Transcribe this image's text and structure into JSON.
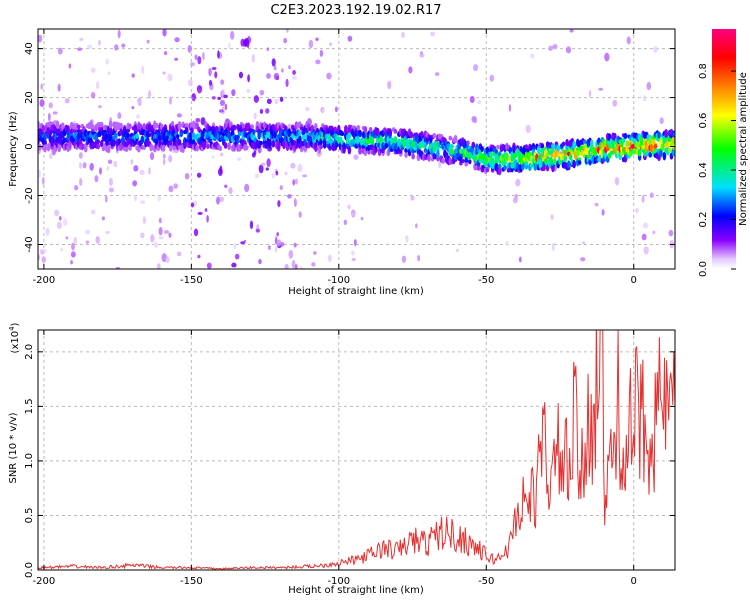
{
  "title": "C2E3.2023.192.19.02.R17",
  "colorbar": {
    "label": "Normalized spectral amplitude",
    "ticks": [
      "0.0",
      "0.2",
      "0.4",
      "0.6",
      "0.8"
    ],
    "tick_values": [
      0.0,
      0.2,
      0.4,
      0.6,
      0.8
    ],
    "range": [
      0,
      0.97
    ]
  },
  "chart_data": [
    {
      "type": "heatmap",
      "xlabel": "Height of straight line (km)",
      "ylabel": "Frequency (Hz)",
      "xlim": [
        -202,
        14
      ],
      "ylim": [
        -50,
        48
      ],
      "xticks": [
        -200,
        -150,
        -100,
        -50,
        0
      ],
      "xtick_labels": [
        "-200",
        "-150",
        "-100",
        "-50",
        "0"
      ],
      "yticks": [
        -40,
        -20,
        0,
        20,
        40
      ],
      "ytick_labels": [
        "-40",
        "-20",
        "0",
        "20",
        "40"
      ],
      "ridge": {
        "x": [
          -200,
          -150,
          -110,
          -100,
          -80,
          -65,
          -55,
          -50,
          -45,
          -40,
          -35,
          -30,
          -20,
          -10,
          0,
          14
        ],
        "freq": [
          4,
          4,
          4,
          3,
          2,
          -1,
          -3,
          -5,
          -5,
          -5,
          -5,
          -4,
          -3,
          -1,
          0,
          1
        ],
        "amplitude": [
          0.3,
          0.35,
          0.4,
          0.45,
          0.5,
          0.5,
          0.55,
          0.6,
          0.65,
          0.7,
          0.75,
          0.8,
          0.85,
          0.9,
          0.95,
          0.9
        ]
      },
      "grid": true
    },
    {
      "type": "line",
      "xlabel": "Height of straight line (km)",
      "ylabel": "SNR (10 * v/v)",
      "scale_label": "(x10",
      "scale_exp": "4",
      "scale_close": ")",
      "xlim": [
        -202,
        14
      ],
      "ylim": [
        0,
        2.2
      ],
      "xticks": [
        -200,
        -150,
        -100,
        -50,
        0
      ],
      "xtick_labels": [
        "-200",
        "-150",
        "-100",
        "-50",
        "0"
      ],
      "yticks": [
        0,
        0.5,
        1.0,
        1.5,
        2.0
      ],
      "ytick_labels": [
        "0.0",
        "0.5",
        "1.0",
        "1.5",
        "2.0"
      ],
      "color": "#e53030",
      "series": [
        {
          "x": [
            -200,
            -190,
            -180,
            -170,
            -160,
            -150,
            -140,
            -130,
            -120,
            -110,
            -105,
            -100,
            -95,
            -90,
            -85,
            -80,
            -75,
            -70,
            -65,
            -60,
            -55,
            -50,
            -47,
            -45,
            -42,
            -40,
            -37,
            -35,
            -32,
            -30,
            -28,
            -25,
            -22,
            -20,
            -18,
            -15,
            -13,
            -11,
            -10,
            -8,
            -5,
            -3,
            0,
            2,
            4,
            6,
            8,
            10,
            12,
            14
          ],
          "values": [
            0.02,
            0.03,
            0.02,
            0.04,
            0.02,
            0.02,
            0.01,
            0.02,
            0.02,
            0.03,
            0.04,
            0.06,
            0.08,
            0.12,
            0.18,
            0.16,
            0.25,
            0.22,
            0.32,
            0.28,
            0.22,
            0.12,
            0.08,
            0.12,
            0.2,
            0.45,
            0.6,
            0.55,
            0.8,
            1.1,
            0.7,
            1.0,
            0.8,
            1.25,
            0.7,
            1.3,
            1.5,
            2.25,
            0.6,
            0.8,
            1.4,
            1.0,
            1.2,
            1.35,
            1.1,
            1.3,
            1.25,
            1.45,
            1.2,
            1.4
          ]
        }
      ],
      "grid": true
    }
  ]
}
